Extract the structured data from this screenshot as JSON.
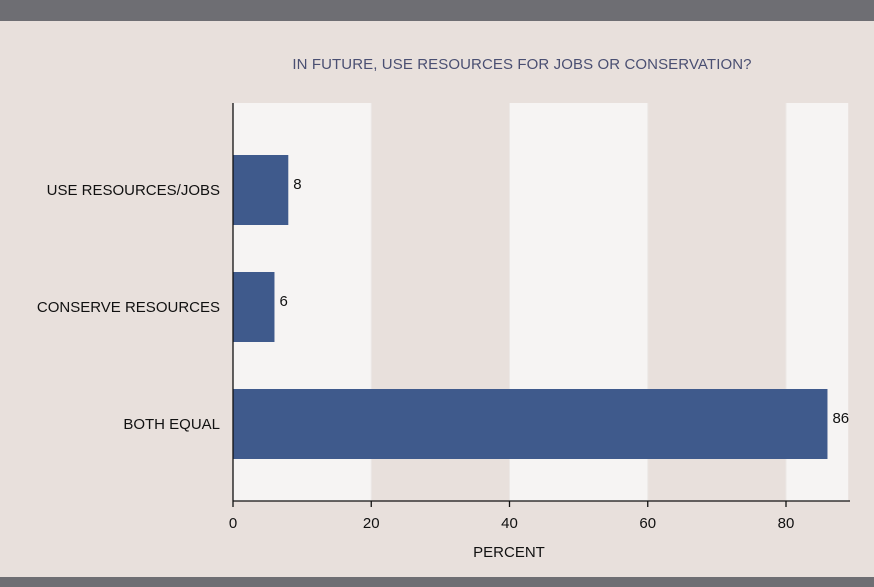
{
  "chart_data": {
    "type": "bar",
    "orientation": "horizontal",
    "title": "IN FUTURE, USE RESOURCES FOR JOBS OR CONSERVATION?",
    "categories": [
      "USE RESOURCES/JOBS",
      "CONSERVE RESOURCES",
      "BOTH EQUAL"
    ],
    "values": [
      8,
      6,
      86
    ],
    "value_labels": [
      "8",
      "6",
      "86"
    ],
    "xlabel": "PERCENT",
    "ylabel": "",
    "xlim": [
      0,
      89
    ],
    "xticks": [
      0,
      20,
      40,
      60,
      80
    ],
    "tick_labels": [
      "0",
      "20",
      "40",
      "60",
      "80"
    ],
    "grid": "alternating vertical bands",
    "legend": "none",
    "bar_color": "#3f5a8c",
    "band_light": "#f6f4f3",
    "band_dark": "#e8e0dc"
  }
}
